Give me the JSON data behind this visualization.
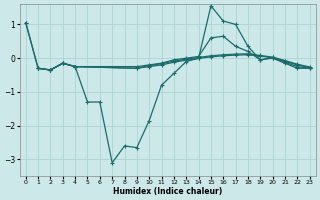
{
  "background_color": "#cce8e8",
  "line_color": "#1a6b6b",
  "grid_color": "#aad4d4",
  "xlabel": "Humidex (Indice chaleur)",
  "xlim": [
    -0.5,
    23.5
  ],
  "ylim": [
    -3.5,
    1.6
  ],
  "yticks": [
    -3,
    -2,
    -1,
    0,
    1
  ],
  "xticks": [
    0,
    1,
    2,
    3,
    4,
    5,
    6,
    7,
    8,
    9,
    10,
    11,
    12,
    13,
    14,
    15,
    16,
    17,
    18,
    19,
    20,
    21,
    22,
    23
  ],
  "lines": [
    {
      "x": [
        0,
        1,
        2,
        3,
        4,
        5,
        6,
        7,
        8,
        9,
        10,
        11,
        12,
        13,
        14,
        15,
        16,
        17,
        18,
        19,
        20,
        21,
        22,
        23
      ],
      "y": [
        1.05,
        -0.3,
        -0.35,
        -0.15,
        -0.25,
        -1.3,
        -1.3,
        -3.1,
        -2.6,
        -2.65,
        -1.85,
        -0.8,
        -0.45,
        -0.1,
        -0.0,
        1.55,
        1.1,
        1.0,
        0.35,
        -0.05,
        0.0,
        -0.15,
        -0.3,
        -0.3
      ]
    },
    {
      "x": [
        0,
        1,
        2,
        3,
        4,
        9,
        10,
        11,
        12,
        13,
        14,
        15,
        16,
        17,
        18,
        19,
        20,
        21,
        22,
        23
      ],
      "y": [
        1.05,
        -0.3,
        -0.35,
        -0.15,
        -0.25,
        -0.25,
        -0.2,
        -0.15,
        -0.05,
        0.0,
        0.05,
        0.6,
        0.65,
        0.35,
        0.2,
        -0.05,
        0.02,
        -0.12,
        -0.25,
        -0.3
      ]
    },
    {
      "x": [
        1,
        2,
        3,
        4,
        9,
        10,
        11,
        12,
        13,
        14,
        15,
        16,
        17,
        18,
        19,
        20,
        21,
        22,
        23
      ],
      "y": [
        -0.3,
        -0.35,
        -0.15,
        -0.25,
        -0.3,
        -0.25,
        -0.2,
        -0.12,
        -0.06,
        -0.01,
        0.04,
        0.07,
        0.09,
        0.1,
        0.06,
        0.01,
        -0.09,
        -0.2,
        -0.28
      ]
    },
    {
      "x": [
        1,
        2,
        3,
        4,
        9,
        10,
        11,
        12,
        13,
        14,
        15,
        16,
        17,
        18,
        19,
        20,
        21,
        22,
        23
      ],
      "y": [
        -0.3,
        -0.35,
        -0.15,
        -0.25,
        -0.3,
        -0.22,
        -0.16,
        -0.09,
        -0.03,
        0.02,
        0.07,
        0.1,
        0.12,
        0.13,
        0.08,
        0.03,
        -0.07,
        -0.18,
        -0.26
      ]
    }
  ]
}
